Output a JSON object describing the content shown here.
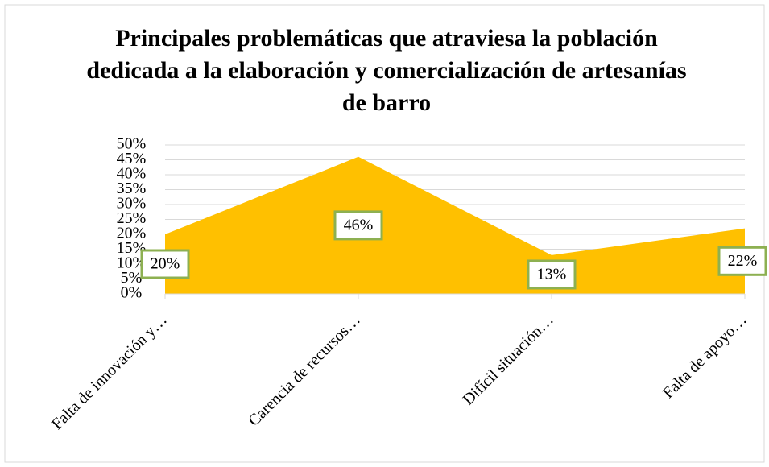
{
  "chart_data": {
    "type": "area",
    "title": "Principales problemáticas que atraviesa la población dedicada a la elaboración y comercialización de artesanías de barro",
    "categories": [
      "Falta de innovación y…",
      "Carencia de recursos…",
      "Difícil situación…",
      "Falta de apoyo…"
    ],
    "values": [
      20,
      46,
      13,
      22
    ],
    "value_labels": [
      "20%",
      "46%",
      "13%",
      "22%"
    ],
    "color": "#ffc000",
    "ylim": [
      0,
      50
    ],
    "yticks": [
      {
        "value": 0,
        "label": "0%"
      },
      {
        "value": 5,
        "label": "5%"
      },
      {
        "value": 10,
        "label": "10%"
      },
      {
        "value": 15,
        "label": "15%"
      },
      {
        "value": 20,
        "label": "20%"
      },
      {
        "value": 25,
        "label": "25%"
      },
      {
        "value": 30,
        "label": "30%"
      },
      {
        "value": 35,
        "label": "35%"
      },
      {
        "value": 40,
        "label": "40%"
      },
      {
        "value": 45,
        "label": "45%"
      },
      {
        "value": 50,
        "label": "50%"
      }
    ],
    "grid": true
  }
}
